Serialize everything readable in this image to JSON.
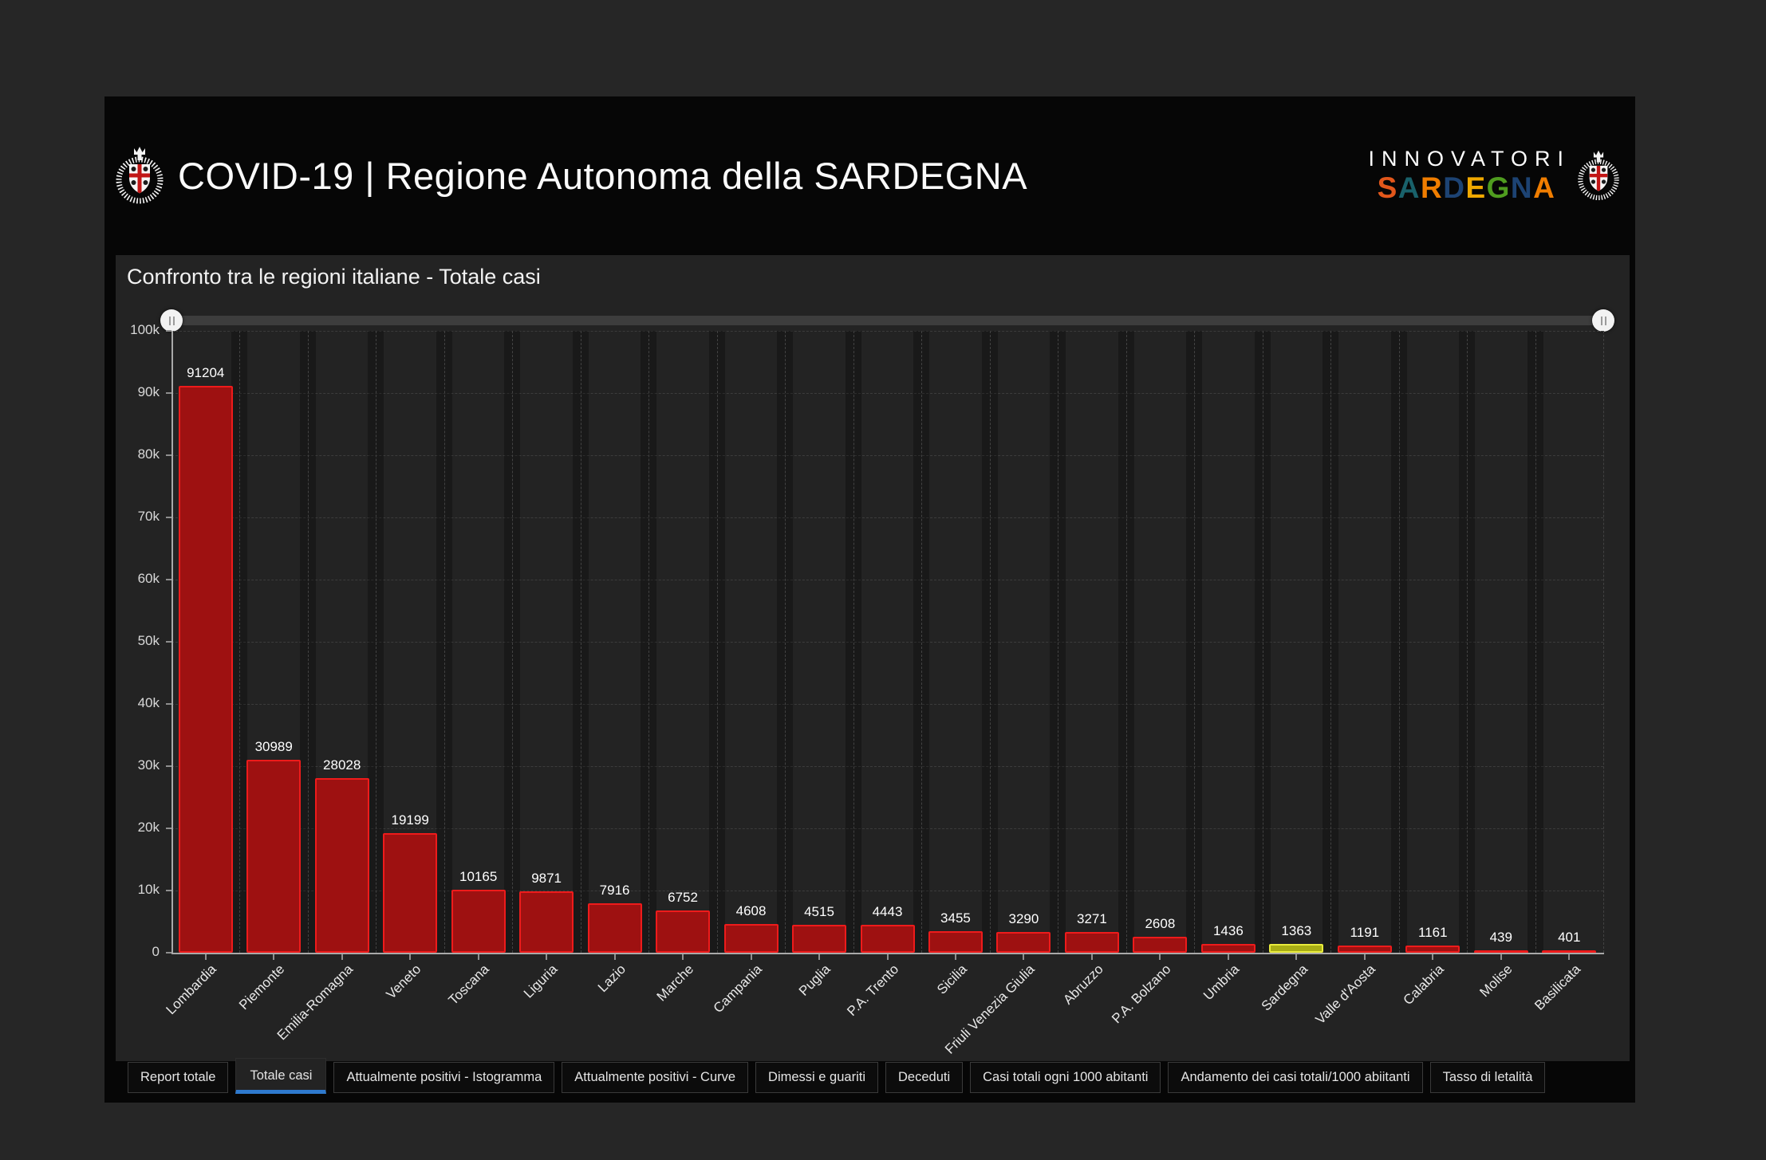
{
  "colors": {
    "page_bg": "#262626",
    "window_bg": "#060606",
    "panel_bg": "#232323",
    "bar_fill": "#9e1111",
    "bar_border": "#ee1b1b",
    "highlight_fill": "#a9ae15",
    "highlight_border": "#e9ec3c",
    "active_tab_accent": "#2e79cd",
    "axis_line": "#a9a9a9",
    "grid_line": "#3c3c3c"
  },
  "header": {
    "title": "COVID-19 | Regione Autonoma della SARDEGNA",
    "left_crest_icon": "sardinia-coat-of-arms",
    "right_crest_icon": "sardinia-coat-of-arms",
    "logo": {
      "line1": "INNOVATORI",
      "line2": "SARDEGNA",
      "line2_letter_colors": [
        "#e2571b",
        "#19616a",
        "#f07d00",
        "#1d4373",
        "#f0a800",
        "#4f9c1f",
        "#1d4373",
        "#f07d00"
      ]
    }
  },
  "chart_data": {
    "type": "bar",
    "title": "Confronto tra le regioni italiane - Totale casi",
    "categories": [
      "Lombardia",
      "Piemonte",
      "Emilia-Romagna",
      "Veneto",
      "Toscana",
      "Liguria",
      "Lazio",
      "Marche",
      "Campania",
      "Puglia",
      "P.A. Trento",
      "Sicilia",
      "Friuli Venezia Giulia",
      "Abruzzo",
      "P.A. Bolzano",
      "Umbria",
      "Sardegna",
      "Valle d'Aosta",
      "Calabria",
      "Molise",
      "Basilicata"
    ],
    "values": [
      91204,
      30989,
      28028,
      19199,
      10165,
      9871,
      7916,
      6752,
      4608,
      4515,
      4443,
      3455,
      3290,
      3271,
      2608,
      1436,
      1363,
      1191,
      1161,
      439,
      401
    ],
    "data_labels": true,
    "highlight_index": 16,
    "highlight_category": "Sardegna",
    "xlabel": "",
    "ylabel": "",
    "ylim": [
      0,
      100000
    ],
    "ytick_step": 10000,
    "ytick_labels": [
      "0",
      "10k",
      "20k",
      "30k",
      "40k",
      "50k",
      "60k",
      "70k",
      "80k",
      "90k",
      "100k"
    ],
    "x_label_rotation_deg": 45,
    "grid": "dashed",
    "legend": false
  },
  "slider": {
    "type": "range",
    "handles": [
      "left",
      "right"
    ]
  },
  "tabs": [
    {
      "label": "Report totale",
      "active": false
    },
    {
      "label": "Totale casi",
      "active": true
    },
    {
      "label": "Attualmente positivi - Istogramma",
      "active": false
    },
    {
      "label": "Attualmente positivi - Curve",
      "active": false
    },
    {
      "label": "Dimessi e guariti",
      "active": false
    },
    {
      "label": "Deceduti",
      "active": false
    },
    {
      "label": "Casi totali ogni 1000 abitanti",
      "active": false
    },
    {
      "label": "Andamento dei casi totali/1000 abiitanti",
      "active": false
    },
    {
      "label": "Tasso di letalità",
      "active": false
    }
  ]
}
